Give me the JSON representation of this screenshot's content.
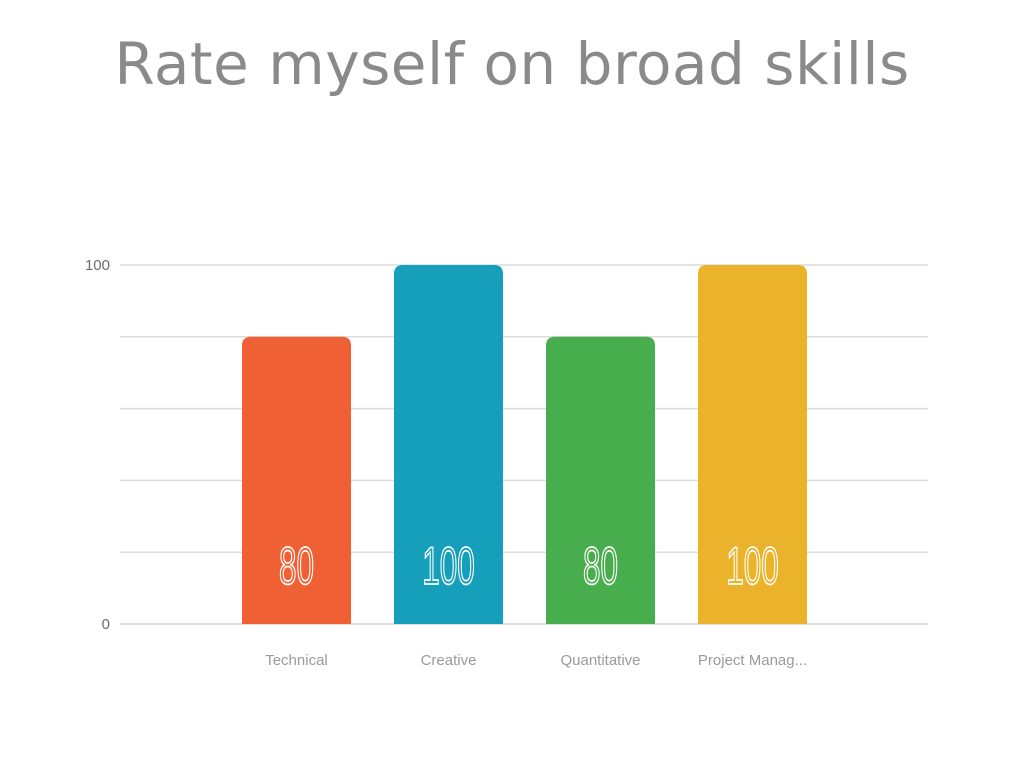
{
  "chart_data": {
    "type": "bar",
    "title": "Rate myself on broad skills",
    "categories": [
      "Technical",
      "Creative",
      "Quantitative",
      "Project Manag..."
    ],
    "values": [
      80,
      100,
      80,
      100
    ],
    "colors": [
      "#f06035",
      "#159fba",
      "#48ad4d",
      "#ebb22b"
    ],
    "ylim": [
      0,
      100
    ],
    "yticks": [
      0,
      100
    ],
    "gridlines": 5,
    "grid": true,
    "legend": "none",
    "xlabel": "",
    "ylabel": ""
  }
}
